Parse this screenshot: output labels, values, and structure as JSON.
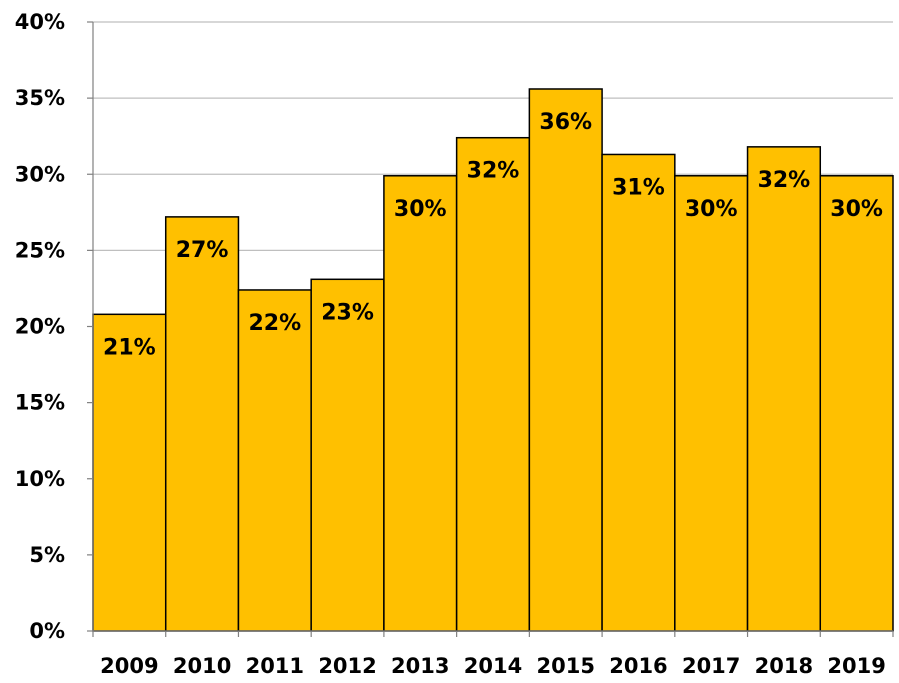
{
  "chart_data": {
    "type": "bar",
    "categories": [
      "2009",
      "2010",
      "2011",
      "2012",
      "2013",
      "2014",
      "2015",
      "2016",
      "2017",
      "2018",
      "2019"
    ],
    "values": [
      20.8,
      27.2,
      22.4,
      23.1,
      29.9,
      32.4,
      35.6,
      31.3,
      29.9,
      31.8,
      29.9
    ],
    "data_labels": [
      "21%",
      "27%",
      "22%",
      "23%",
      "30%",
      "32%",
      "36%",
      "31%",
      "30%",
      "32%",
      "30%"
    ],
    "title": "",
    "xlabel": "",
    "ylabel": "",
    "ylim": [
      0,
      40
    ],
    "yticks": [
      0,
      5,
      10,
      15,
      20,
      25,
      30,
      35,
      40
    ],
    "ytick_labels": [
      "0%",
      "5%",
      "10%",
      "15%",
      "20%",
      "25%",
      "30%",
      "35%",
      "40%"
    ],
    "grid": "horizontal",
    "legend": "none",
    "colors": {
      "bar_fill": "#FFC000",
      "bar_stroke": "#000000",
      "grid": "#BFBFBF",
      "axis": "#808080"
    }
  }
}
